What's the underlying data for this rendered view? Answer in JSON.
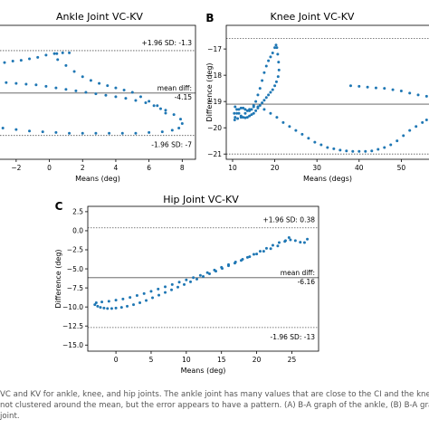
{
  "chart_data": [
    {
      "type": "scatter",
      "panel_label": "",
      "title": "Ankle Joint VC-KV",
      "xlabel": "Means (deg)",
      "ylabel": "",
      "xlim": [
        -3.3,
        8.8
      ],
      "ylim": [
        -8.6,
        0.4
      ],
      "xticks": [
        -2,
        0,
        2,
        4,
        6,
        8
      ],
      "yticks": [],
      "reference_lines": [
        {
          "y": -1.3,
          "label": "+1.96 SD: -1.3",
          "style": "dotted",
          "label_pos": "above"
        },
        {
          "y": -4.15,
          "label_top": "mean diff:",
          "label": "-4.15",
          "style": "solid",
          "label_pos": "straddle"
        },
        {
          "y": -7.0,
          "label": "-1.96 SD: -7",
          "style": "dotted",
          "label_pos": "below"
        }
      ],
      "series": [
        {
          "x": [
            -3.2,
            -2.7,
            -2.2,
            -1.7,
            -1.2,
            -0.7,
            -0.2,
            0.3,
            0.8,
            1.2,
            0.45,
            0.5,
            1.0,
            1.5,
            2.0,
            2.5,
            3.0,
            3.5,
            4.0,
            4.5,
            5.0,
            5.5,
            6.0,
            6.5,
            7.0,
            7.5,
            7.9,
            8.0,
            7.8,
            7.4,
            6.8,
            6.0,
            5.2,
            4.4,
            3.6,
            2.8,
            2.0,
            1.2,
            0.4,
            -0.4,
            -1.2,
            -2.0,
            -2.8,
            -3.2,
            -2.6,
            -2.0,
            -1.4,
            -0.8,
            -0.2,
            0.4,
            1.0,
            1.6,
            2.2,
            2.8,
            3.4,
            4.0,
            4.6,
            5.2,
            5.8,
            6.3,
            6.7,
            7.0
          ],
          "y": [
            -2.0,
            -2.1,
            -2.0,
            -1.95,
            -1.85,
            -1.75,
            -1.6,
            -1.5,
            -1.45,
            -1.45,
            -1.5,
            -1.9,
            -2.3,
            -2.7,
            -3.05,
            -3.3,
            -3.5,
            -3.65,
            -3.8,
            -3.95,
            -4.1,
            -4.4,
            -4.7,
            -5.0,
            -5.3,
            -5.6,
            -5.9,
            -6.2,
            -6.5,
            -6.65,
            -6.75,
            -6.8,
            -6.85,
            -6.85,
            -6.85,
            -6.85,
            -6.85,
            -6.85,
            -6.8,
            -6.75,
            -6.7,
            -6.6,
            -6.5,
            -3.4,
            -3.45,
            -3.5,
            -3.55,
            -3.6,
            -3.7,
            -3.8,
            -3.9,
            -4.0,
            -4.1,
            -4.2,
            -4.3,
            -4.4,
            -4.5,
            -4.65,
            -4.8,
            -5.0,
            -5.2,
            -5.5
          ]
        }
      ]
    },
    {
      "type": "scatter",
      "panel_label": "B",
      "title": "Knee Joint VC-KV",
      "xlabel": "Means (degs)",
      "ylabel": "Difference (deg)",
      "xlim": [
        8.5,
        57
      ],
      "ylim": [
        -21.2,
        -16.1
      ],
      "xticks": [
        10,
        20,
        30,
        40,
        50
      ],
      "yticks": [
        -17,
        -18,
        -19,
        -20,
        -21
      ],
      "reference_lines": [
        {
          "y": -16.6,
          "label": "",
          "style": "dotted"
        },
        {
          "y": -19.1,
          "label": "",
          "style": "solid"
        },
        {
          "y": -21.0,
          "label": "",
          "style": "dotted"
        }
      ],
      "series": [
        {
          "x": [
            10.5,
            11.0,
            11.5,
            12.0,
            12.5,
            13.0,
            13.5,
            14.0,
            14.5,
            15.0,
            15.5,
            16.0,
            16.5,
            17.0,
            17.5,
            18.0,
            18.5,
            19.0,
            19.5,
            20.0,
            20.3,
            20.5,
            20.7,
            20.9,
            21.0,
            20.8,
            20.4,
            20.0,
            19.5,
            19.0,
            18.5,
            18.0,
            17.5,
            17.0,
            16.5,
            16.0,
            15.5,
            15.0,
            14.5,
            14.0,
            13.5,
            13.0,
            12.5,
            12.0,
            11.5,
            11.0,
            10.6,
            10.4,
            10.6,
            11.2,
            12.0,
            13.0,
            14.0,
            15.0,
            16.0,
            17.5,
            19.0,
            20.5,
            22.0,
            23.5,
            25.0,
            26.5,
            28.0,
            29.5,
            31.0,
            32.5,
            34.0,
            35.5,
            37.0,
            38.5,
            40.0,
            41.5,
            43.0,
            44.5,
            46.0,
            47.5,
            49.0,
            50.5,
            52.0,
            53.5,
            55.0,
            56.0,
            38.0,
            40.0,
            42.0,
            44.0,
            46.0,
            48.0,
            50.0,
            52.0,
            54.0,
            56.0
          ],
          "y": [
            -19.7,
            -19.45,
            -19.3,
            -19.25,
            -19.25,
            -19.3,
            -19.35,
            -19.35,
            -19.3,
            -19.2,
            -19.0,
            -18.75,
            -18.5,
            -18.2,
            -17.9,
            -17.65,
            -17.45,
            -17.3,
            -17.15,
            -16.95,
            -16.85,
            -16.95,
            -17.2,
            -17.5,
            -17.8,
            -18.05,
            -18.25,
            -18.4,
            -18.55,
            -18.65,
            -18.75,
            -18.85,
            -18.95,
            -19.05,
            -19.15,
            -19.25,
            -19.35,
            -19.45,
            -19.5,
            -19.55,
            -19.6,
            -19.62,
            -19.6,
            -19.55,
            -19.45,
            -19.3,
            -19.2,
            -19.45,
            -19.6,
            -19.65,
            -19.6,
            -19.45,
            -19.3,
            -19.15,
            -19.2,
            -19.3,
            -19.45,
            -19.6,
            -19.8,
            -19.95,
            -20.1,
            -20.25,
            -20.4,
            -20.55,
            -20.65,
            -20.75,
            -20.8,
            -20.85,
            -20.88,
            -20.9,
            -20.9,
            -20.9,
            -20.88,
            -20.82,
            -20.75,
            -20.65,
            -20.5,
            -20.3,
            -20.1,
            -19.95,
            -19.8,
            -19.7,
            -18.4,
            -18.42,
            -18.45,
            -18.48,
            -18.5,
            -18.55,
            -18.6,
            -18.68,
            -18.75,
            -18.8
          ]
        }
      ]
    },
    {
      "type": "scatter",
      "panel_label": "C",
      "title": "Hip Joint VC-KV",
      "xlabel": "Means (deg)",
      "ylabel": "Difference (deg)",
      "xlim": [
        -4,
        28.8
      ],
      "ylim": [
        -15.8,
        3.2
      ],
      "xticks": [
        0,
        5,
        10,
        15,
        20,
        25
      ],
      "yticks": [
        2.5,
        0.0,
        -2.5,
        -5.0,
        -7.5,
        -10.0,
        -12.5,
        -15.0
      ],
      "ytick_labels": [
        "2.5",
        "0.0",
        "−2.5",
        "−5.0",
        "−7.5",
        "−10.0",
        "−12.5",
        "−15.0"
      ],
      "reference_lines": [
        {
          "y": 0.38,
          "label": "+1.96 SD: 0.38",
          "style": "dotted",
          "label_pos": "above"
        },
        {
          "y": -6.16,
          "label_top": "mean diff:",
          "label": "-6.16",
          "style": "solid",
          "label_pos": "straddle"
        },
        {
          "y": -12.7,
          "label": "-1.96 SD: -13",
          "style": "dotted",
          "label_pos": "below"
        }
      ],
      "series": [
        {
          "x": [
            -3.0,
            -2.6,
            -2.2,
            -1.7,
            -1.2,
            -0.6,
            0.0,
            0.8,
            1.6,
            2.5,
            3.4,
            4.3,
            5.2,
            6.1,
            7.0,
            7.9,
            8.8,
            9.7,
            10.6,
            11.5,
            12.4,
            13.3,
            14.2,
            15.1,
            16.0,
            16.9,
            17.8,
            18.7,
            19.6,
            20.5,
            21.4,
            22.3,
            23.2,
            24.1,
            24.8,
            25.5,
            26.2,
            26.8,
            27.2,
            -2.8,
            -2.0,
            -1.0,
            0.0,
            1.0,
            2.0,
            3.0,
            4.0,
            5.0,
            6.0,
            7.0,
            8.0,
            9.0,
            10.0,
            11.0,
            12.0,
            13.0,
            14.0,
            15.0,
            16.0,
            17.0,
            18.0,
            19.0,
            20.0,
            21.0,
            22.0,
            23.0,
            24.0,
            24.6
          ],
          "y": [
            -9.7,
            -9.9,
            -10.05,
            -10.15,
            -10.2,
            -10.2,
            -10.15,
            -10.05,
            -9.9,
            -9.7,
            -9.45,
            -9.15,
            -8.8,
            -8.45,
            -8.1,
            -7.75,
            -7.4,
            -7.05,
            -6.7,
            -6.35,
            -6.0,
            -5.65,
            -5.3,
            -4.95,
            -4.6,
            -4.25,
            -3.9,
            -3.5,
            -3.1,
            -2.7,
            -2.3,
            -1.9,
            -1.55,
            -1.3,
            -1.2,
            -1.3,
            -1.5,
            -1.55,
            -1.1,
            -9.45,
            -9.35,
            -9.25,
            -9.1,
            -8.95,
            -8.75,
            -8.5,
            -8.25,
            -7.95,
            -7.65,
            -7.35,
            -7.05,
            -6.75,
            -6.45,
            -6.15,
            -5.85,
            -5.5,
            -5.15,
            -4.8,
            -4.45,
            -4.1,
            -3.75,
            -3.4,
            -3.05,
            -2.7,
            -2.35,
            -2.0,
            -1.4,
            -0.9
          ]
        }
      ]
    }
  ],
  "caption": {
    "lines": [
      "VC and KV for ankle, knee, and hip joints. The ankle joint has many values that are close to the CI and the knee cross",
      "not clustered around the mean, but the error appears to have a pattern. (A) B-A graph of the ankle, (B) B-A graph of",
      "joint."
    ]
  },
  "colors": {
    "marker": "#1f77b4",
    "axis": "#000000",
    "refline": "#555555",
    "caption": "#555555"
  }
}
